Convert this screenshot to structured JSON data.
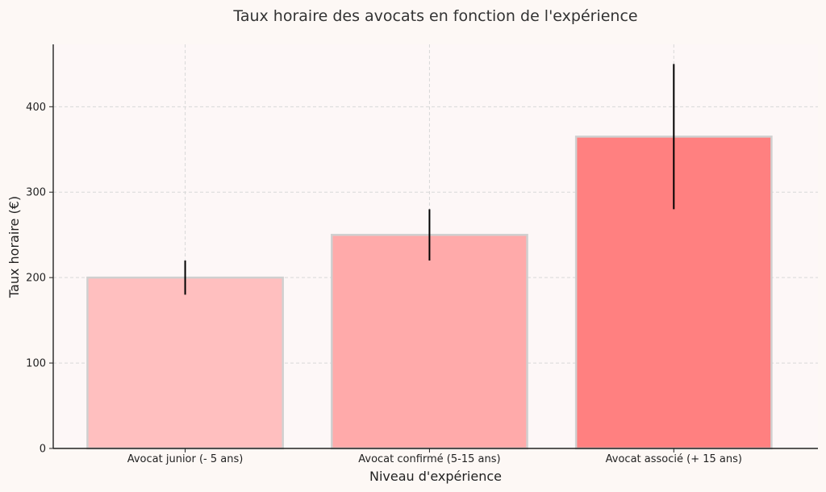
{
  "chart_data": {
    "type": "bar",
    "title": "Taux horaire des avocats en fonction de l'expérience",
    "xlabel": "Niveau d'expérience",
    "ylabel": "Taux horaire (€)",
    "categories": [
      "Avocat junior (- 5 ans)",
      "Avocat confirmé (5-15 ans)",
      "Avocat associé (+ 15 ans)"
    ],
    "values": [
      200,
      250,
      365
    ],
    "error_low": [
      180,
      220,
      280
    ],
    "error_high": [
      220,
      280,
      450
    ],
    "bar_colors": [
      "#ffbfbf",
      "#ffaaaa",
      "#ff8080"
    ],
    "ylim": [
      0,
      473
    ],
    "yticks": [
      0,
      100,
      200,
      300,
      400
    ],
    "grid": true,
    "plot_background": "#fdf7f7"
  }
}
